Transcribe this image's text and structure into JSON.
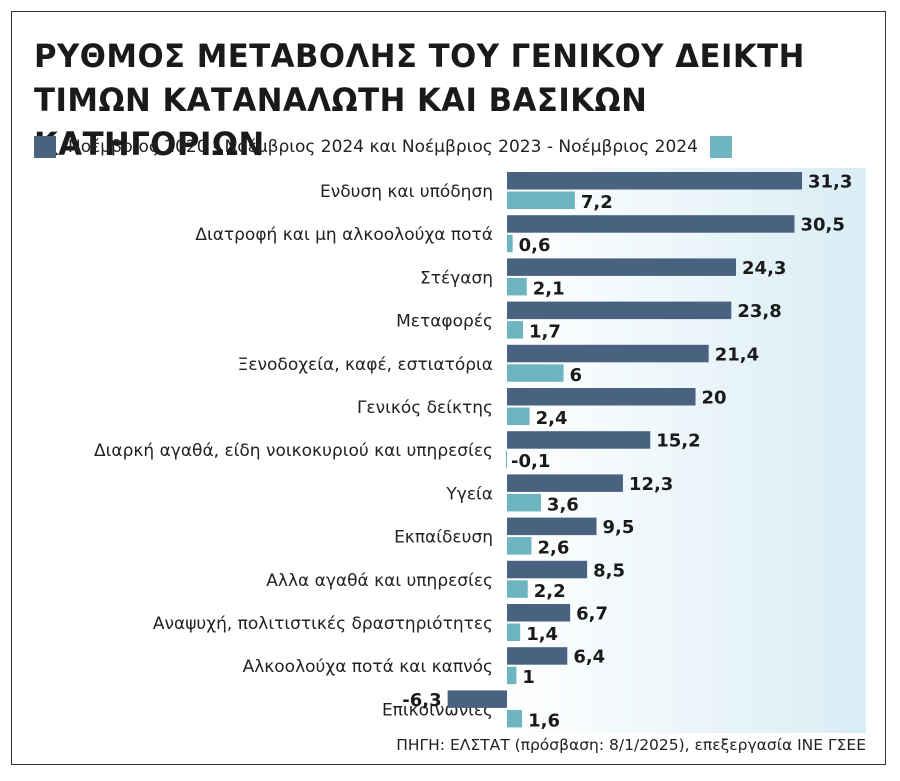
{
  "title_lines": [
    "ΡΥΘΜΟΣ ΜΕΤΑΒΟΛΗΣ ΤΟΥ ΓΕΝΙΚΟΥ ΔΕΙΚΤΗ",
    "ΤΙΜΩΝ ΚΑΤΑΝΑΛΩΤΗ ΚΑΙ ΒΑΣΙΚΩΝ ΚΑΤΗΓΟΡΙΩΝ"
  ],
  "legend_text": "Νοέμβριος 2020 - Νοέμβριος 2024 και Νοέμβριος 2023 - Νοέμβριος 2024",
  "source": "ΠΗΓΗ: ΕΛΣΤΑΤ (πρόσβαση: 8/1/2025), επεξεργασία ΙΝΕ ΓΣΕΕ",
  "colors": {
    "series_1": "#48627f",
    "series_2": "#6fb5c1",
    "background_gradient_start": "#ffffff",
    "background_gradient_end": "#d9edf5"
  },
  "chart_data": {
    "type": "bar",
    "orientation": "horizontal",
    "categories": [
      "Ενδυση και υπόδηση",
      "Διατροφή και μη αλκοολούχα ποτά",
      "Στέγαση",
      "Μεταφορές",
      "Ξενοδοχεία, καφέ, εστιατόρια",
      "Γενικός δείκτης",
      "Διαρκή αγαθά, είδη νοικοκυριού και υπηρεσίες",
      "Υγεία",
      "Εκπαίδευση",
      "Αλλα αγαθά και υπηρεσίες",
      "Αναψυχή, πολιτιστικές δραστηριότητες",
      "Αλκοολούχα ποτά και καπνός",
      "Επικοινωνίες"
    ],
    "series": [
      {
        "values": [
          31.3,
          30.5,
          24.3,
          23.8,
          21.4,
          20,
          15.2,
          12.3,
          9.5,
          8.5,
          6.7,
          6.4,
          -6.3
        ],
        "labels": [
          "31,3",
          "30,5",
          "24,3",
          "23,8",
          "21,4",
          "20",
          "15,2",
          "12,3",
          "9,5",
          "8,5",
          "6,7",
          "6,4",
          "-6,3"
        ]
      },
      {
        "values": [
          7.2,
          0.6,
          2.1,
          1.7,
          6,
          2.4,
          -0.1,
          3.6,
          2.6,
          2.2,
          1.4,
          1,
          1.6
        ],
        "labels": [
          "7,2",
          "0,6",
          "2,1",
          "1,7",
          "6",
          "2,4",
          "-0,1",
          "3,6",
          "2,6",
          "2,2",
          "1,4",
          "1",
          "1,6"
        ]
      }
    ],
    "xlim": [
      -6.3,
      31.3
    ],
    "grid": false,
    "legend_position": "top"
  }
}
